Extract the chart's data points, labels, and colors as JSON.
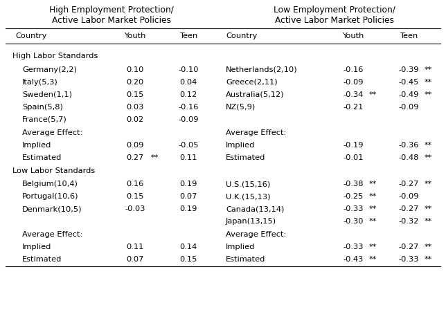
{
  "title_left": "High Employment Protection/\nActive Labor Market Policies",
  "title_right": "Low Employment Protection/\nActive Labor Market Policies",
  "section1_label": "High Labor Standards",
  "section2_label": "Low Labor Standards",
  "left_high": [
    [
      "Germany(2,2)",
      "0.10",
      "-0.10",
      "",
      ""
    ],
    [
      "Italy(5,3)",
      "0.20",
      "0.04",
      "",
      ""
    ],
    [
      "Sweden(1,1)",
      "0.15",
      "0.12",
      "",
      ""
    ],
    [
      "Spain(5,8)",
      "0.03",
      "-0.16",
      "",
      ""
    ],
    [
      "France(5,7)",
      "0.02",
      "-0.09",
      "",
      ""
    ]
  ],
  "left_high_avg": [
    [
      "Average Effect:",
      "",
      "",
      "",
      ""
    ],
    [
      "Implied",
      "0.09",
      "-0.05",
      "",
      ""
    ],
    [
      "Estimated",
      "0.27",
      "0.11",
      "**",
      ""
    ]
  ],
  "left_low": [
    [
      "Belgium(10,4)",
      "0.16",
      "0.19",
      "",
      ""
    ],
    [
      "Portugal(10,6)",
      "0.15",
      "0.07",
      "",
      ""
    ],
    [
      "Denmark(10,5)",
      "-0.03",
      "0.19",
      "",
      ""
    ]
  ],
  "left_low_avg": [
    [
      "Average Effect:",
      "",
      "",
      "",
      ""
    ],
    [
      "Implied",
      "0.11",
      "0.14",
      "",
      ""
    ],
    [
      "Estimated",
      "0.07",
      "0.15",
      "",
      ""
    ]
  ],
  "right_high": [
    [
      "Netherlands(2,10)",
      "-0.16",
      "-0.39",
      "",
      "**"
    ],
    [
      "Greece(2,11)",
      "-0.09",
      "-0.45",
      "",
      "**"
    ],
    [
      "Australia(5,12)",
      "-0.34",
      "-0.49",
      "**",
      "**"
    ],
    [
      "NZ(5,9)",
      "-0.21",
      "-0.09",
      "",
      ""
    ]
  ],
  "right_high_avg": [
    [
      "Average Effect:",
      "",
      "",
      "",
      ""
    ],
    [
      "Implied",
      "-0.19",
      "-0.36",
      "",
      "**"
    ],
    [
      "Estimated",
      "-0.01",
      "-0.48",
      "",
      "**"
    ]
  ],
  "right_low": [
    [
      "U.S.(15,16)",
      "-0.38",
      "-0.27",
      "**",
      "**"
    ],
    [
      "U.K.(15,13)",
      "-0.25",
      "-0.09",
      "**",
      ""
    ],
    [
      "Canada(13,14)",
      "-0.33",
      "-0.27",
      "**",
      "**"
    ],
    [
      "Japan(13,15)",
      "-0.30",
      "-0.32",
      "**",
      "**"
    ]
  ],
  "right_low_avg": [
    [
      "Average Effect:",
      "",
      "",
      "",
      ""
    ],
    [
      "Implied",
      "-0.33",
      "-0.27",
      "**",
      "**"
    ],
    [
      "Estimated",
      "-0.43",
      "-0.33",
      "**",
      "**"
    ]
  ],
  "bg_color": "#ffffff",
  "text_color": "#000000",
  "font_size": 8.2,
  "title_font_size": 8.8
}
